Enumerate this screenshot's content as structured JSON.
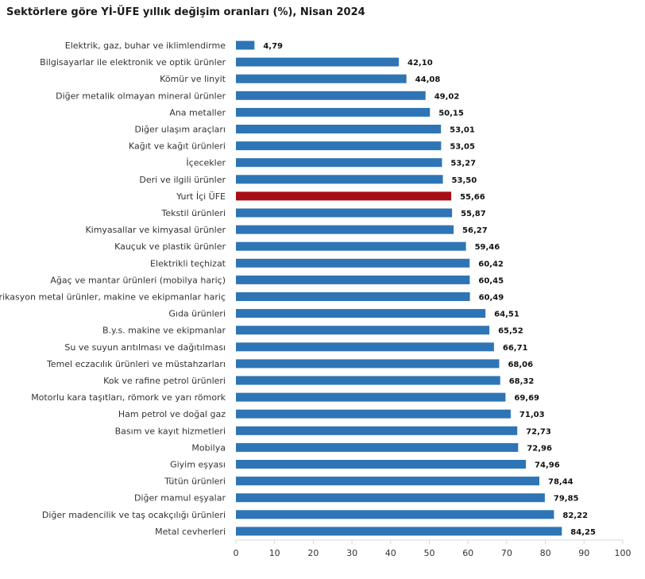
{
  "chart_data": {
    "type": "bar",
    "orientation": "horizontal",
    "title": "Sektörlere göre Yİ-ÜFE yıllık değişim oranları (%), Nisan 2024",
    "categories": [
      "Elektrik, gaz, buhar ve iklimlendirme",
      "Bilgisayarlar ile elektronik ve optik ürünler",
      "Kömür ve linyit",
      "Diğer metalik olmayan mineral ürünler",
      "Ana metaller",
      "Diğer ulaşım araçları",
      "Kağıt ve kağıt ürünleri",
      "İçecekler",
      "Deri ve ilgili ürünler",
      "Yurt İçi ÜFE",
      "Tekstil ürünleri",
      "Kimyasallar ve kimyasal ürünler",
      "Kauçuk ve plastik ürünler",
      "Elektrikli teçhizat",
      "Ağaç ve mantar ürünleri (mobilya hariç)",
      "Fabrikasyon metal ürünler, makine ve ekipmanlar hariç",
      "Gıda ürünleri",
      "B.y.s. makine ve ekipmanlar",
      "Su ve suyun arıtılması ve dağıtılması",
      "Temel eczacılık ürünleri ve müstahzarları",
      "Kok ve rafine petrol ürünleri",
      "Motorlu kara taşıtları, römork ve yarı römork",
      "Ham petrol ve doğal gaz",
      "Basım ve kayıt hizmetleri",
      "Mobilya",
      "Giyim eşyası",
      "Tütün ürünleri",
      "Diğer mamul eşyalar",
      "Diğer madencilik ve taş ocakçılığı ürünleri",
      "Metal cevherleri"
    ],
    "values": [
      4.79,
      42.1,
      44.08,
      49.02,
      50.15,
      53.01,
      53.05,
      53.27,
      53.5,
      55.66,
      55.87,
      56.27,
      59.46,
      60.42,
      60.45,
      60.49,
      64.51,
      65.52,
      66.71,
      68.06,
      68.32,
      69.69,
      71.03,
      72.73,
      72.96,
      74.96,
      78.44,
      79.85,
      82.22,
      84.25
    ],
    "value_labels": [
      "4,79",
      "42,10",
      "44,08",
      "49,02",
      "50,15",
      "53,01",
      "53,05",
      "53,27",
      "53,50",
      "55,66",
      "55,87",
      "56,27",
      "59,46",
      "60,42",
      "60,45",
      "60,49",
      "64,51",
      "65,52",
      "66,71",
      "68,06",
      "68,32",
      "69,69",
      "71,03",
      "72,73",
      "72,96",
      "74,96",
      "78,44",
      "79,85",
      "82,22",
      "84,25"
    ],
    "highlight_category": "Yurt İçi ÜFE",
    "xlim": [
      0,
      100
    ],
    "xticks": [
      0,
      10,
      20,
      30,
      40,
      50,
      60,
      70,
      80,
      90,
      100
    ],
    "xlabel": "",
    "ylabel": "",
    "grid": false,
    "legend": "none",
    "colors": {
      "bar": "#2e75b6",
      "highlight": "#a50f15",
      "axis": "#d9d9d9"
    }
  }
}
